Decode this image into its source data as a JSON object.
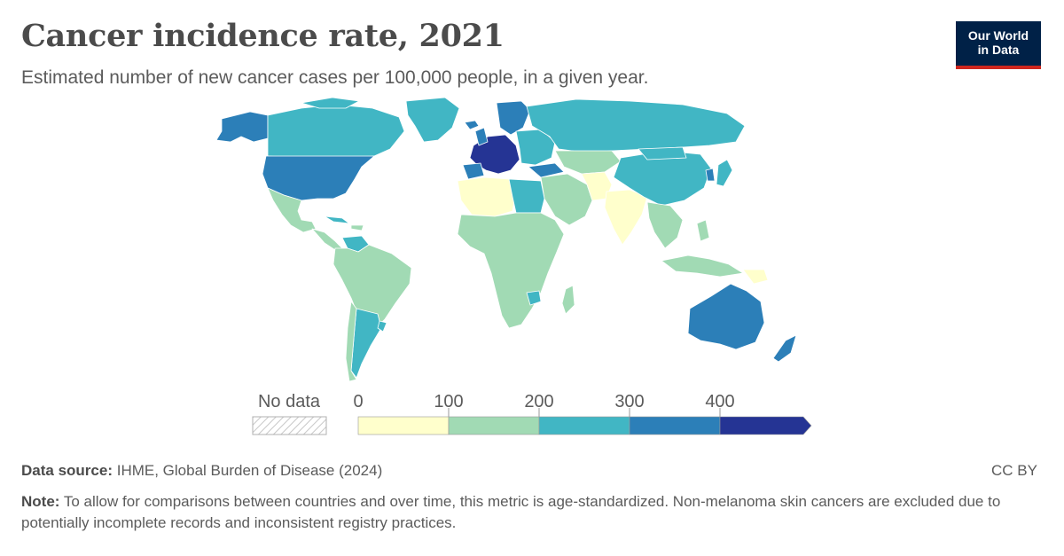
{
  "header": {
    "title": "Cancer incidence rate, 2021",
    "subtitle": "Estimated number of new cancer cases per 100,000 people, in a given year."
  },
  "logo": {
    "line1": "Our World",
    "line2": "in Data"
  },
  "legend": {
    "no_data_label": "No data",
    "ticks": [
      "0",
      "100",
      "200",
      "300",
      "400"
    ],
    "bins": [
      {
        "min": 0,
        "max": 100,
        "color": "#ffffcc"
      },
      {
        "min": 100,
        "max": 200,
        "color": "#a1dab4"
      },
      {
        "min": 200,
        "max": 300,
        "color": "#41b6c4"
      },
      {
        "min": 300,
        "max": 400,
        "color": "#2c7fb8"
      },
      {
        "min": 400,
        "max": null,
        "color": "#253494"
      }
    ]
  },
  "footer": {
    "source_label": "Data source:",
    "source_text": "IHME, Global Burden of Disease (2024)",
    "license": "CC BY",
    "note_label": "Note:",
    "note_text": "To allow for comparisons between countries and over time, this metric is age-standardized. Non-melanoma skin cancers are excluded due to potentially incomplete records and inconsistent registry practices."
  },
  "colors": {
    "bin_0_100": "#ffffcc",
    "bin_100_200": "#a1dab4",
    "bin_200_300": "#41b6c4",
    "bin_300_400": "#2c7fb8",
    "bin_400_plus": "#253494",
    "brand_navy": "#002147",
    "brand_red": "#ce261e"
  }
}
